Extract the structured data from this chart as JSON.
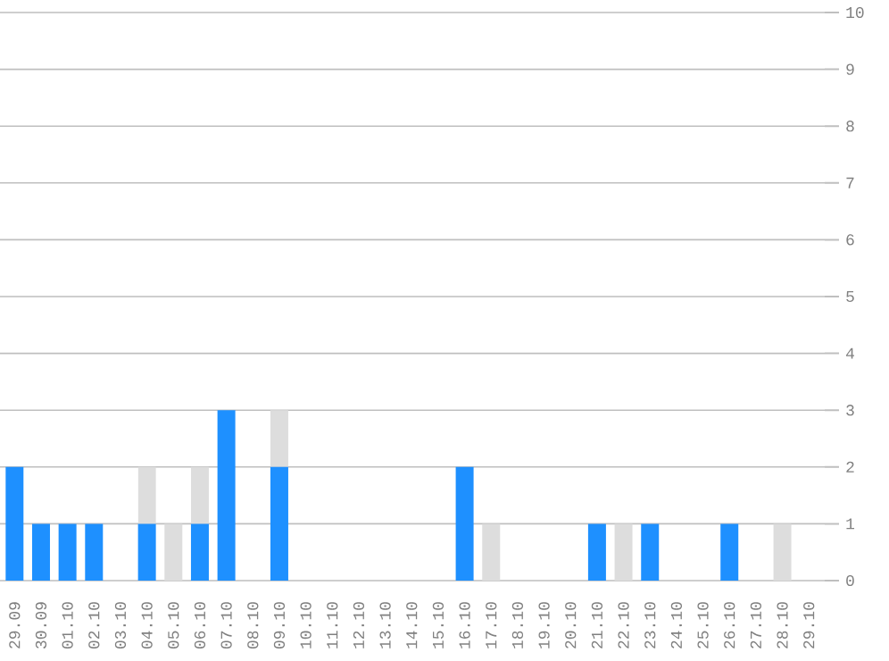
{
  "chart_data": {
    "type": "bar",
    "stacked": true,
    "categories": [
      "29.09",
      "30.09",
      "01.10",
      "02.10",
      "03.10",
      "04.10",
      "05.10",
      "06.10",
      "07.10",
      "08.10",
      "09.10",
      "10.10",
      "11.10",
      "12.10",
      "13.10",
      "14.10",
      "15.10",
      "16.10",
      "17.10",
      "18.10",
      "19.10",
      "20.10",
      "21.10",
      "22.10",
      "23.10",
      "24.10",
      "25.10",
      "26.10",
      "27.10",
      "28.10",
      "29.10"
    ],
    "series": [
      {
        "color": "#1e90ff",
        "values": [
          2,
          1,
          1,
          1,
          0,
          1,
          0,
          1,
          3,
          0,
          2,
          0,
          0,
          0,
          0,
          0,
          0,
          2,
          0,
          0,
          0,
          0,
          1,
          0,
          1,
          0,
          0,
          1,
          0,
          0,
          0
        ]
      },
      {
        "color": "#dddddd",
        "values": [
          0,
          0,
          0,
          0,
          0,
          1,
          1,
          1,
          0,
          0,
          1,
          0,
          0,
          0,
          0,
          0,
          0,
          0,
          1,
          0,
          0,
          0,
          0,
          1,
          0,
          0,
          0,
          0,
          0,
          1,
          0
        ]
      }
    ],
    "ylim": [
      0,
      10
    ],
    "yticks": [
      0,
      1,
      2,
      3,
      4,
      5,
      6,
      7,
      8,
      9,
      10
    ],
    "grid": "y"
  }
}
